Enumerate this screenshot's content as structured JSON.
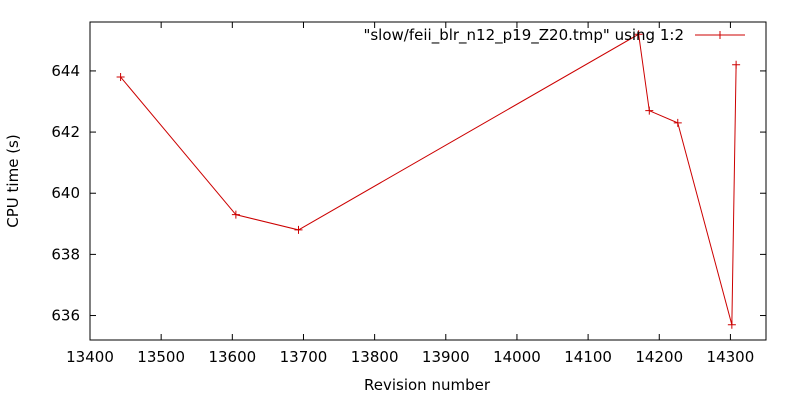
{
  "chart_data": {
    "type": "line",
    "title": "",
    "xlabel": "Revision number",
    "ylabel": "CPU time (s)",
    "xlim": [
      13400,
      14350
    ],
    "ylim": [
      635.2,
      645.6
    ],
    "xticks": [
      13400,
      13500,
      13600,
      13700,
      13800,
      13900,
      14000,
      14100,
      14200,
      14300
    ],
    "yticks": [
      636,
      638,
      640,
      642,
      644
    ],
    "grid": false,
    "legend_position": "top-right",
    "series": [
      {
        "name": "\"slow/feii_blr_n12_p19_Z20.tmp\" using 1:2",
        "color": "#cc0000",
        "marker": "plus",
        "x": [
          13443,
          13605,
          13693,
          14171,
          14186,
          14226,
          14302,
          14308
        ],
        "y": [
          643.8,
          639.3,
          638.8,
          645.2,
          642.7,
          642.3,
          635.7,
          644.2
        ]
      }
    ]
  }
}
